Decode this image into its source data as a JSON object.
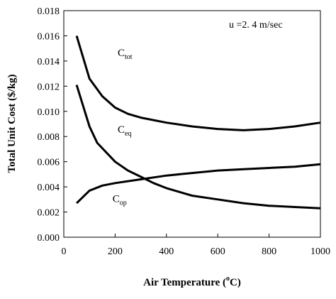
{
  "chart_data": {
    "type": "line",
    "xlabel": "Air Temperature (",
    "xlabel_sup": "o",
    "xlabel_end": "C)",
    "ylabel": "Total Unit Cost ($/kg)",
    "annotation": "u =2. 4 m/sec",
    "xlim": [
      0,
      1000
    ],
    "ylim": [
      0,
      0.018
    ],
    "x_ticks": [
      "0",
      "200",
      "400",
      "600",
      "800",
      "1000"
    ],
    "y_ticks": [
      "0.000",
      "0.002",
      "0.004",
      "0.006",
      "0.008",
      "0.010",
      "0.012",
      "0.014",
      "0.016",
      "0.018"
    ],
    "grid": false,
    "series": [
      {
        "name": "C",
        "sub": "tot",
        "points": [
          [
            50,
            0.016
          ],
          [
            100,
            0.0126
          ],
          [
            150,
            0.0112
          ],
          [
            200,
            0.0103
          ],
          [
            250,
            0.0098
          ],
          [
            300,
            0.0095
          ],
          [
            400,
            0.0091
          ],
          [
            500,
            0.0088
          ],
          [
            600,
            0.0086
          ],
          [
            700,
            0.0085
          ],
          [
            800,
            0.0086
          ],
          [
            900,
            0.0088
          ],
          [
            1000,
            0.0091
          ]
        ]
      },
      {
        "name": "C",
        "sub": "eq",
        "points": [
          [
            50,
            0.0121
          ],
          [
            100,
            0.0088
          ],
          [
            130,
            0.0075
          ],
          [
            200,
            0.006
          ],
          [
            250,
            0.0053
          ],
          [
            300,
            0.0048
          ],
          [
            350,
            0.0043
          ],
          [
            400,
            0.0039
          ],
          [
            500,
            0.0033
          ],
          [
            600,
            0.003
          ],
          [
            700,
            0.0027
          ],
          [
            800,
            0.0025
          ],
          [
            900,
            0.0024
          ],
          [
            1000,
            0.0023
          ]
        ]
      },
      {
        "name": "C",
        "sub": "op",
        "points": [
          [
            50,
            0.0027
          ],
          [
            100,
            0.0037
          ],
          [
            150,
            0.0041
          ],
          [
            200,
            0.0043
          ],
          [
            300,
            0.0046
          ],
          [
            400,
            0.0049
          ],
          [
            500,
            0.0051
          ],
          [
            600,
            0.0053
          ],
          [
            700,
            0.0054
          ],
          [
            800,
            0.0055
          ],
          [
            900,
            0.0056
          ],
          [
            1000,
            0.0058
          ]
        ]
      }
    ]
  }
}
